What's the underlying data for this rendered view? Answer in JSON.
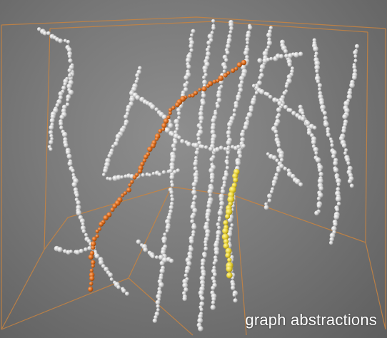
{
  "caption": "graph abstractions",
  "colors": {
    "background": "#7a7a7a",
    "bounding_box": "#c98440",
    "node_default": "#d2d2d2",
    "edge_default": "#bdbdbd",
    "highlight_orange": "#d96a1c",
    "highlight_yellow": "#e8d236"
  },
  "icons": [
    "bounding-box-wireframe",
    "node-sphere"
  ]
}
